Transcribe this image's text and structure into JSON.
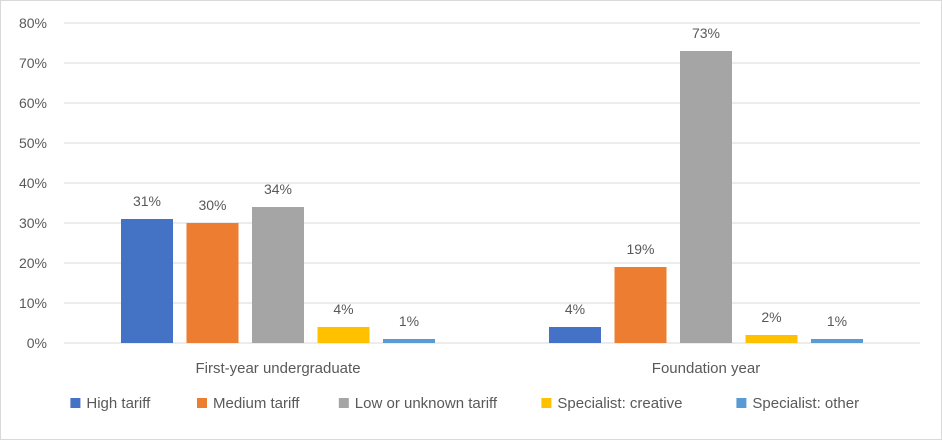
{
  "chart_data": {
    "type": "bar",
    "title": "",
    "xlabel": "",
    "ylabel": "",
    "ylim": [
      0,
      80
    ],
    "y_ticks": [
      "0%",
      "10%",
      "20%",
      "30%",
      "40%",
      "50%",
      "60%",
      "70%",
      "80%"
    ],
    "grid": true,
    "legend_position": "bottom",
    "categories": [
      "First-year undergraduate",
      "Foundation year"
    ],
    "series": [
      {
        "name": "High tariff",
        "color": "#4472c4",
        "values": [
          31,
          4
        ],
        "labels": [
          "31%",
          "4%"
        ]
      },
      {
        "name": "Medium tariff",
        "color": "#ed7d31",
        "values": [
          30,
          19
        ],
        "labels": [
          "30%",
          "19%"
        ]
      },
      {
        "name": "Low or unknown tariff",
        "color": "#a5a5a5",
        "values": [
          34,
          73
        ],
        "labels": [
          "34%",
          "73%"
        ]
      },
      {
        "name": "Specialist: creative",
        "color": "#ffc000",
        "values": [
          4,
          2
        ],
        "labels": [
          "4%",
          "2%"
        ]
      },
      {
        "name": "Specialist: other",
        "color": "#5b9bd5",
        "values": [
          1,
          1
        ],
        "labels": [
          "1%",
          "1%"
        ]
      }
    ]
  }
}
